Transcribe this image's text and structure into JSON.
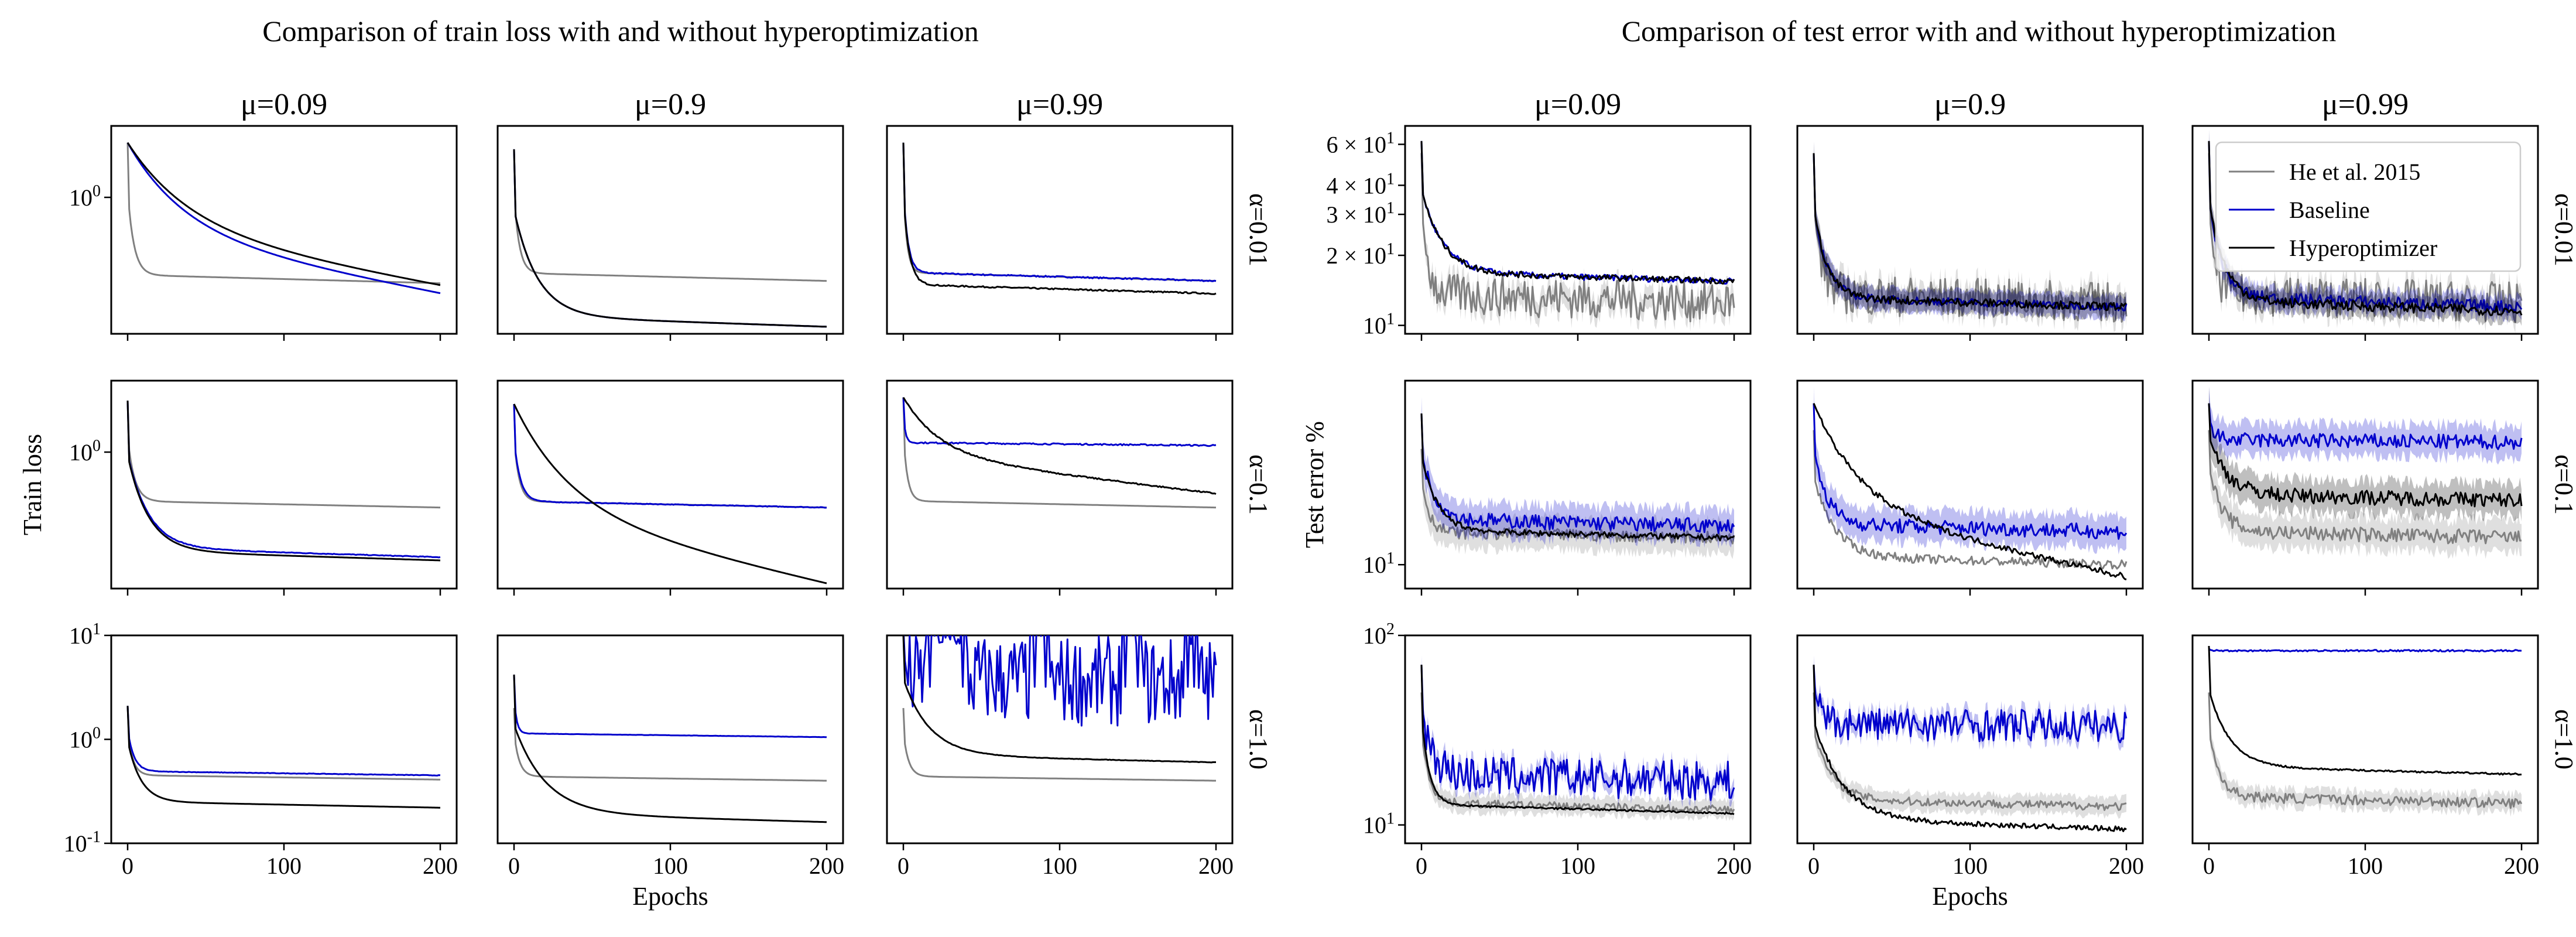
{
  "chart_data": [
    {
      "type": "line",
      "title": "Comparison of train loss with and without hyperoptimization",
      "ylabel": "Train loss",
      "xlabel": "Epochs",
      "yscale": "log",
      "ylim": [
        0.1,
        10
      ],
      "xlim": [
        0,
        200
      ],
      "xticks": [
        0,
        100,
        200
      ],
      "yticks": [
        "10^{-1}",
        "10^{0}",
        "10^{1}"
      ],
      "col_labels": [
        "μ=0.09",
        "μ=0.9",
        "μ=0.99"
      ],
      "row_labels": [
        "α=0.01",
        "α=0.1",
        "α=1.0"
      ],
      "series": [
        {
          "name": "He et al. 2015",
          "color": "#808080"
        },
        {
          "name": "Baseline",
          "color": "#0000cc"
        },
        {
          "name": "Hyperoptimizer",
          "color": "#000000"
        }
      ],
      "panels": [
        {
          "row": 0,
          "col": 0,
          "lines": [
            {
              "series": "He et al. 2015",
              "start": 2.2,
              "end": 0.29,
              "rate": 12,
              "noise": 0
            },
            {
              "series": "Baseline",
              "start": 2.2,
              "end": 0.25,
              "rate": 110,
              "noise": 0
            },
            {
              "series": "Hyperoptimizer",
              "start": 2.2,
              "end": 0.28,
              "rate": 120,
              "noise": 0
            }
          ]
        },
        {
          "row": 0,
          "col": 1,
          "lines": [
            {
              "series": "He et al. 2015",
              "start": 2.0,
              "end": 0.3,
              "rate": 10,
              "noise": 0
            },
            {
              "series": "Baseline",
              "start": 2.0,
              "end": 0.155,
              "rate": 45,
              "noise": 0
            },
            {
              "series": "Hyperoptimizer",
              "start": 2.0,
              "end": 0.155,
              "rate": 45,
              "noise": 0
            }
          ]
        },
        {
          "row": 0,
          "col": 2,
          "lines": [
            {
              "series": "He et al. 2015",
              "start": 2.2,
              "end": 0.3,
              "rate": 7,
              "noise": 0
            },
            {
              "series": "Baseline",
              "start": 2.2,
              "end": 0.3,
              "rate": 9,
              "noise": 0.01
            },
            {
              "series": "Hyperoptimizer",
              "start": 2.2,
              "end": 0.25,
              "rate": 11,
              "noise": 0.01
            }
          ]
        },
        {
          "row": 1,
          "col": 0,
          "lines": [
            {
              "series": "He et al. 2015",
              "start": 2.1,
              "end": 0.45,
              "rate": 13,
              "noise": 0
            },
            {
              "series": "Baseline",
              "start": 2.1,
              "end": 0.22,
              "rate": 40,
              "noise": 0.005
            },
            {
              "series": "Hyperoptimizer",
              "start": 2.1,
              "end": 0.21,
              "rate": 40,
              "noise": 0
            }
          ]
        },
        {
          "row": 1,
          "col": 1,
          "lines": [
            {
              "series": "He et al. 2015",
              "start": 2.0,
              "end": 0.45,
              "rate": 10,
              "noise": 0
            },
            {
              "series": "Baseline",
              "start": 2.0,
              "end": 0.45,
              "rate": 12,
              "noise": 0.005
            },
            {
              "series": "Hyperoptimizer",
              "start": 2.0,
              "end": 0.15,
              "rate": 110,
              "noise": 0
            }
          ]
        },
        {
          "row": 1,
          "col": 2,
          "lines": [
            {
              "series": "He et al. 2015",
              "start": 2.2,
              "end": 0.45,
              "rate": 8,
              "noise": 0
            },
            {
              "series": "Baseline",
              "start": 2.2,
              "end": 1.1,
              "rate": 4,
              "noise": 0.01
            },
            {
              "series": "Hyperoptimizer",
              "start": 2.2,
              "end": 0.55,
              "rate": 70,
              "noise": 0.01
            }
          ]
        },
        {
          "row": 2,
          "col": 0,
          "lines": [
            {
              "series": "He et al. 2015",
              "start": 2.1,
              "end": 0.41,
              "rate": 10,
              "noise": 0
            },
            {
              "series": "Baseline",
              "start": 2.1,
              "end": 0.45,
              "rate": 12,
              "noise": 0.005
            },
            {
              "series": "Hyperoptimizer",
              "start": 2.1,
              "end": 0.22,
              "rate": 25,
              "noise": 0
            }
          ]
        },
        {
          "row": 2,
          "col": 1,
          "lines": [
            {
              "series": "He et al. 2015",
              "start": 2.0,
              "end": 0.4,
              "rate": 10,
              "noise": 0
            },
            {
              "series": "Baseline",
              "start": 4.2,
              "end": 1.05,
              "rate": 5,
              "noise": 0.003
            },
            {
              "series": "Hyperoptimizer",
              "start": 4.2,
              "end": 0.16,
              "rate": 60,
              "noise": 0
            }
          ]
        },
        {
          "row": 2,
          "col": 2,
          "lines": [
            {
              "series": "He et al. 2015",
              "start": 2.0,
              "end": 0.4,
              "rate": 10,
              "noise": 0
            },
            {
              "series": "Baseline",
              "start": 20,
              "end": 3.5,
              "rate": 3,
              "noise": 0.5,
              "spikes": [
                [
                  15,
                  40
                ],
                [
                  82,
                  93
                ],
                [
                  140,
                  152
                ],
                [
                  180,
                  188
                ]
              ]
            },
            {
              "series": "Hyperoptimizer",
              "start": 10,
              "end": 0.6,
              "rate": 50,
              "noise": 0.005
            }
          ]
        }
      ]
    },
    {
      "type": "line",
      "title": "Comparison of test error with and without hyperoptimization",
      "ylabel": "Test error %",
      "xlabel": "Epochs",
      "yscale": "log",
      "xlim": [
        0,
        200
      ],
      "xticks": [
        0,
        100,
        200
      ],
      "yticks_row0": [
        "10^{1}",
        "2 × 10^{1}",
        "3 × 10^{1}",
        "4 × 10^{1}",
        "6 × 10^{1}"
      ],
      "yticks_row1": [
        "10^{1}"
      ],
      "yticks_row2": [
        "10^{1}",
        "10^{2}"
      ],
      "col_labels": [
        "μ=0.09",
        "μ=0.9",
        "μ=0.99"
      ],
      "row_labels": [
        "α=0.01",
        "α=0.1",
        "α=1.0"
      ],
      "legend": {
        "location": "upper right of top-right panel",
        "entries": [
          "He et al. 2015",
          "Baseline",
          "Hyperoptimizer"
        ]
      },
      "series": [
        {
          "name": "He et al. 2015",
          "color": "#808080"
        },
        {
          "name": "Baseline",
          "color": "#0000cc"
        },
        {
          "name": "Hyperoptimizer",
          "color": "#000000"
        }
      ],
      "panels": [
        {
          "row": 0,
          "col": 0,
          "lines": [
            {
              "series": "He et al. 2015",
              "start": 55,
              "end": 12.5,
              "rate": 12,
              "noise": 0.1
            },
            {
              "series": "Baseline",
              "start": 62,
              "end": 15.5,
              "rate": 40,
              "noise": 0.03
            },
            {
              "series": "Hyperoptimizer",
              "start": 62,
              "end": 15.5,
              "rate": 40,
              "noise": 0.03
            }
          ]
        },
        {
          "row": 0,
          "col": 1,
          "lines": [
            {
              "series": "He et al. 2015",
              "start": 55,
              "end": 12.5,
              "rate": 15,
              "noise": 0.1
            },
            {
              "series": "Baseline",
              "start": 55,
              "end": 12,
              "rate": 25,
              "noise": 0.04
            },
            {
              "series": "Hyperoptimizer",
              "start": 55,
              "end": 12,
              "rate": 25,
              "noise": 0.04
            }
          ]
        },
        {
          "row": 0,
          "col": 2,
          "lines": [
            {
              "series": "He et al. 2015",
              "start": 55,
              "end": 12.5,
              "rate": 12,
              "noise": 0.1
            },
            {
              "series": "Baseline",
              "start": 62,
              "end": 12,
              "rate": 25,
              "noise": 0.06
            },
            {
              "series": "Hyperoptimizer",
              "start": 62,
              "end": 11.5,
              "rate": 30,
              "noise": 0.05
            }
          ]
        },
        {
          "row": 1,
          "col": 0,
          "lines": [
            {
              "series": "He et al. 2015",
              "start": 22,
              "end": 12,
              "rate": 15,
              "noise": 0.04
            },
            {
              "series": "Baseline",
              "start": 28,
              "end": 13,
              "rate": 25,
              "noise": 0.05
            },
            {
              "series": "Hyperoptimizer",
              "start": 28,
              "end": 12,
              "rate": 30,
              "noise": 0.02
            }
          ]
        },
        {
          "row": 1,
          "col": 1,
          "lines": [
            {
              "series": "He et al. 2015",
              "start": 25,
              "end": 10,
              "rate": 40,
              "noise": 0.03
            },
            {
              "series": "Baseline",
              "start": 30,
              "end": 12.5,
              "rate": 25,
              "noise": 0.05
            },
            {
              "series": "Hyperoptimizer",
              "start": 30,
              "end": 9.2,
              "rate": 90,
              "noise": 0.02
            }
          ]
        },
        {
          "row": 1,
          "col": 2,
          "lines": [
            {
              "series": "He et al. 2015",
              "start": 25,
              "end": 12,
              "rate": 25,
              "noise": 0.05
            },
            {
              "series": "Baseline",
              "start": 30,
              "end": 23,
              "rate": 10,
              "noise": 0.05
            },
            {
              "series": "Hyperoptimizer",
              "start": 30,
              "end": 15.5,
              "rate": 35,
              "noise": 0.05
            }
          ]
        },
        {
          "row": 2,
          "col": 0,
          "lines": [
            {
              "series": "He et al. 2015",
              "start": 50,
              "end": 12,
              "rate": 15,
              "noise": 0.05
            },
            {
              "series": "Baseline",
              "start": 70,
              "end": 17,
              "rate": 20,
              "noise": 0.12
            },
            {
              "series": "Hyperoptimizer",
              "start": 70,
              "end": 11.5,
              "rate": 15,
              "noise": 0.01
            }
          ]
        },
        {
          "row": 2,
          "col": 1,
          "lines": [
            {
              "series": "He et al. 2015",
              "start": 50,
              "end": 12.5,
              "rate": 35,
              "noise": 0.05
            },
            {
              "series": "Baseline",
              "start": 70,
              "end": 33,
              "rate": 12,
              "noise": 0.1
            },
            {
              "series": "Hyperoptimizer",
              "start": 70,
              "end": 9.5,
              "rate": 55,
              "noise": 0.03
            }
          ]
        },
        {
          "row": 2,
          "col": 2,
          "lines": [
            {
              "series": "He et al. 2015",
              "start": 50,
              "end": 13,
              "rate": 20,
              "noise": 0.06
            },
            {
              "series": "Baseline",
              "start": 85,
              "end": 83,
              "rate": 5,
              "noise": 0.01
            },
            {
              "series": "Hyperoptimizer",
              "start": 88,
              "end": 18.5,
              "rate": 40,
              "noise": 0.01
            }
          ]
        }
      ]
    }
  ]
}
